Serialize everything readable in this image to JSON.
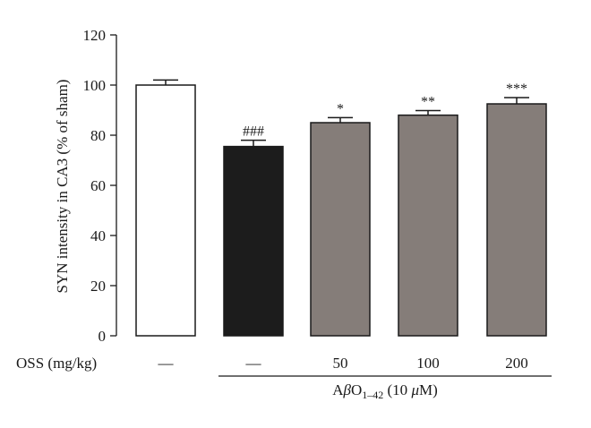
{
  "chart_data": {
    "type": "bar",
    "ylabel": "SYN intensity in CA3 (% of sham)",
    "ylim": [
      0,
      120
    ],
    "yticks": [
      0,
      20,
      40,
      60,
      80,
      100,
      120
    ],
    "row_label": "OSS (mg/kg)",
    "categories": [
      "—",
      "—",
      "50",
      "100",
      "200"
    ],
    "values": [
      100,
      75.5,
      85,
      88,
      92.5
    ],
    "errors": [
      2,
      2.5,
      2,
      1.8,
      2.5
    ],
    "significance": [
      "",
      "###",
      "*",
      "**",
      "***"
    ],
    "bar_colors": [
      "#ffffff",
      "#1c1c1c",
      "#857d79",
      "#857d79",
      "#857d79"
    ],
    "group_label": {
      "text_prefix": "A",
      "beta": "β",
      "O": "O",
      "subscript": "1–42",
      "text_suffix": " (10 ",
      "mu": "μ",
      "unit": "M)",
      "span_categories": [
        1,
        4
      ]
    },
    "grid": false
  }
}
